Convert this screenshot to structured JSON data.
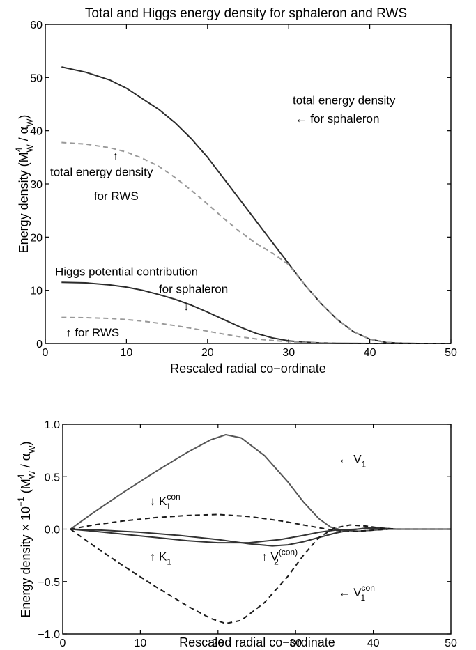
{
  "chart_data": [
    {
      "type": "line",
      "title": "Total and Higgs energy density for sphaleron and RWS",
      "xlabel": "Rescaled radial co−ordinate",
      "ylabel_main": "Energy density (M",
      "ylabel_sup": "4",
      "ylabel_sub": "W",
      "ylabel_mid": " / α",
      "ylabel_sub2": "W",
      "ylabel_end": ")",
      "xlim": [
        0,
        50
      ],
      "ylim": [
        0,
        60
      ],
      "xticks": [
        "0",
        "10",
        "20",
        "30",
        "40",
        "50"
      ],
      "yticks": [
        "0",
        "10",
        "20",
        "30",
        "40",
        "50",
        "60"
      ],
      "series": [
        {
          "style": "solid",
          "color": "#2b2b2b",
          "x": [
            2,
            5,
            8,
            10,
            12,
            14,
            16,
            18,
            20,
            22,
            24,
            26,
            28,
            30,
            32,
            34,
            36,
            38,
            40,
            42,
            44,
            46,
            48,
            50
          ],
          "y": [
            52,
            51,
            49.5,
            48,
            46,
            44,
            41.5,
            38.5,
            35,
            31,
            27,
            23,
            19,
            15,
            11,
            7.5,
            4.5,
            2.2,
            0.8,
            0.2,
            0.05,
            0,
            0,
            0
          ]
        },
        {
          "style": "dashed",
          "color": "#999999",
          "x": [
            2,
            5,
            8,
            10,
            12,
            14,
            16,
            18,
            20,
            22,
            24,
            26,
            28,
            30,
            32,
            34,
            36,
            38,
            40,
            42,
            44,
            46,
            48,
            50
          ],
          "y": [
            37.8,
            37.5,
            36.8,
            36,
            34.8,
            33.3,
            31.2,
            28.8,
            26.2,
            23.5,
            21,
            18.8,
            17,
            14.8,
            11,
            7.5,
            4.5,
            2.2,
            0.8,
            0.2,
            0.05,
            0,
            0,
            0
          ]
        },
        {
          "style": "solid",
          "color": "#2b2b2b",
          "x": [
            2,
            5,
            8,
            10,
            12,
            14,
            16,
            18,
            20,
            22,
            24,
            26,
            28,
            30,
            32,
            34,
            36,
            38,
            40,
            45,
            50
          ],
          "y": [
            11.5,
            11.4,
            11,
            10.6,
            10,
            9.2,
            8.3,
            7.2,
            5.9,
            4.5,
            3.1,
            1.9,
            1.05,
            0.5,
            0.25,
            0.1,
            0.04,
            0.01,
            0,
            0,
            0
          ]
        },
        {
          "style": "dashed",
          "color": "#999999",
          "x": [
            2,
            5,
            8,
            10,
            12,
            14,
            16,
            18,
            20,
            22,
            24,
            26,
            28,
            30,
            32,
            34,
            36,
            38,
            40,
            45,
            50
          ],
          "y": [
            4.9,
            4.85,
            4.7,
            4.5,
            4.2,
            3.8,
            3.35,
            2.85,
            2.3,
            1.75,
            1.25,
            0.85,
            0.55,
            0.35,
            0.2,
            0.1,
            0.04,
            0.01,
            0,
            0,
            0
          ]
        }
      ],
      "annotations": [
        {
          "text": "total energy density",
          "x": 30.5,
          "y": 45
        },
        {
          "text": "← for sphaleron",
          "x": 30.8,
          "y": 41.5
        },
        {
          "text": "↑",
          "x": 8.3,
          "y": 34.5
        },
        {
          "text": "total energy density",
          "x": 0.6,
          "y": 31.5
        },
        {
          "text": "for RWS",
          "x": 6,
          "y": 27
        },
        {
          "text": "Higgs potential contribution",
          "x": 1.2,
          "y": 12.8
        },
        {
          "text": "for sphaleron",
          "x": 14,
          "y": 9.5
        },
        {
          "text": "↓",
          "x": 17,
          "y": 6.3
        },
        {
          "text": "↑ for RWS",
          "x": 2.5,
          "y": 1.3
        }
      ]
    },
    {
      "type": "line",
      "title": "",
      "xlabel": "Rescaled radial co−ordinate",
      "ylabel_main": "Energy density × 10",
      "ylabel_sup": "−1",
      "ylabel_rest": " (M",
      "ylabel_sup2": "4",
      "ylabel_sub": "W",
      "ylabel_mid": " / α",
      "ylabel_sub2": "W",
      "ylabel_end": ")",
      "xlim": [
        0,
        50
      ],
      "ylim": [
        -1.0,
        1.0
      ],
      "xticks": [
        "0",
        "10",
        "20",
        "30",
        "40",
        "50"
      ],
      "yticks": [
        "−1.0",
        "−0.5",
        "0.0",
        "0.5",
        "1.0"
      ],
      "series": [
        {
          "name": "V1",
          "style": "solid",
          "color": "#555555",
          "x": [
            1,
            4,
            8,
            12,
            16,
            19,
            21,
            23,
            26,
            29,
            31,
            33,
            34.5,
            36,
            38,
            40,
            42,
            44,
            50
          ],
          "y": [
            0,
            0.16,
            0.36,
            0.55,
            0.73,
            0.85,
            0.9,
            0.87,
            0.7,
            0.45,
            0.26,
            0.1,
            0.02,
            -0.01,
            -0.02,
            -0.01,
            0,
            0,
            0
          ]
        },
        {
          "name": "K1con",
          "style": "dashed",
          "color": "#1a1a1a",
          "x": [
            1,
            4,
            8,
            12,
            16,
            20,
            24,
            28,
            31,
            34,
            36,
            38,
            40,
            42,
            44,
            50
          ],
          "y": [
            0,
            0.04,
            0.08,
            0.11,
            0.13,
            0.14,
            0.12,
            0.08,
            0.04,
            0,
            -0.02,
            -0.02,
            -0.01,
            0,
            0,
            0
          ]
        },
        {
          "name": "K1",
          "style": "solid",
          "color": "#333333",
          "x": [
            1,
            4,
            8,
            12,
            16,
            20,
            24,
            28,
            31,
            33,
            35,
            38,
            40,
            42,
            44,
            50
          ],
          "y": [
            0,
            -0.02,
            -0.05,
            -0.08,
            -0.11,
            -0.13,
            -0.13,
            -0.1,
            -0.06,
            -0.03,
            -0.01,
            0,
            0.01,
            0,
            0,
            0
          ]
        },
        {
          "name": "V2con",
          "style": "solid",
          "color": "#333333",
          "x": [
            1,
            5,
            10,
            15,
            20,
            24,
            27,
            29,
            31,
            33,
            35,
            37,
            39,
            41,
            43,
            45,
            50
          ],
          "y": [
            0,
            -0.01,
            -0.03,
            -0.06,
            -0.1,
            -0.14,
            -0.16,
            -0.15,
            -0.12,
            -0.08,
            -0.04,
            -0.01,
            0.01,
            0.01,
            0,
            0,
            0
          ]
        },
        {
          "name": "V1con",
          "style": "dashed",
          "color": "#1a1a1a",
          "x": [
            1,
            4,
            8,
            12,
            16,
            19,
            21,
            23,
            26,
            29,
            31,
            33,
            35,
            37,
            39,
            41,
            43,
            45,
            50
          ],
          "y": [
            0,
            -0.16,
            -0.36,
            -0.55,
            -0.73,
            -0.85,
            -0.9,
            -0.87,
            -0.7,
            -0.45,
            -0.25,
            -0.08,
            0.01,
            0.04,
            0.03,
            0.01,
            0,
            0,
            0
          ]
        }
      ],
      "annotations": [
        {
          "text": "← V",
          "sub": "1",
          "sup": "",
          "x": 35.5,
          "y": 0.63
        },
        {
          "text": "↓ K",
          "sub": "1",
          "sup": "con",
          "x": 11.2,
          "y": 0.23
        },
        {
          "text": "↑ K",
          "sub": "1",
          "sup": "",
          "x": 11.2,
          "y": -0.3
        },
        {
          "text": "↑ V",
          "sub": "2",
          "sup": "(con)",
          "x": 25.6,
          "y": -0.3
        },
        {
          "text": "← V",
          "sub": "1",
          "sup": "con",
          "x": 35.5,
          "y": -0.64
        }
      ]
    }
  ]
}
